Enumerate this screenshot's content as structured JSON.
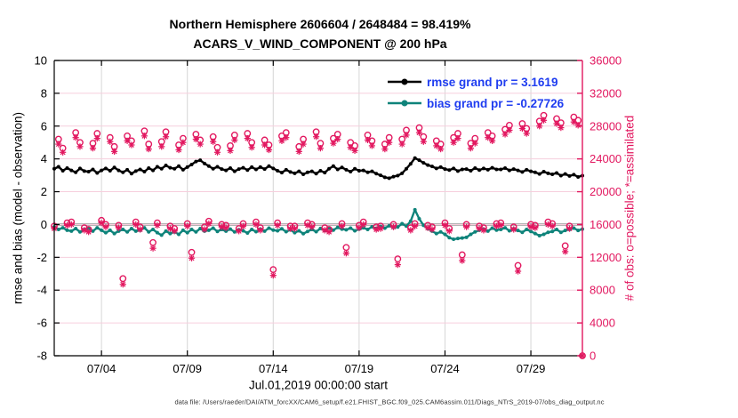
{
  "title": {
    "line1": "Northern Hemisphere 2606604 / 2648484 = 98.419%",
    "line2": "ACARS_V_WIND_COMPONENT @ 200 hPa"
  },
  "footer": {
    "data_file": "data file: /Users/raeder/DAI/ATM_forcXX/CAM6_setup/f.e21.FHIST_BGC.f09_025.CAM6assim.011/Diags_NTrS_2019-07/obs_diag_output.nc"
  },
  "colors": {
    "crimson": "#e2175f",
    "grid_pink": "#f6cfdd",
    "grid_gray": "#d6d6d6",
    "zero_gray": "#b3b3b3",
    "teal": "#0e837a",
    "black": "#000000",
    "legend_blue": "#1f3df0"
  },
  "chart_data": {
    "type": "line",
    "n_points": 124,
    "x_axis": {
      "label": "Jul.01,2019 00:00:00 start",
      "tick_labels": [
        "07/04",
        "07/09",
        "07/14",
        "07/19",
        "07/24",
        "07/29"
      ],
      "tick_days": [
        3,
        8,
        13,
        18,
        23,
        28
      ],
      "start_day": 0.25,
      "end_day": 31.0,
      "step_days": 0.25
    },
    "y_left": {
      "label": "rmse and bias (model - observation)",
      "min": -8,
      "max": 10,
      "ticks": [
        10,
        8,
        6,
        4,
        2,
        0,
        -2,
        -4,
        -6,
        -8
      ]
    },
    "y_right": {
      "label": "# of obs: o=possible; *=assimilated",
      "min": 0,
      "max": 36000,
      "ticks": [
        36000,
        32000,
        28000,
        24000,
        20000,
        16000,
        12000,
        8000,
        4000,
        0
      ]
    },
    "legend": [
      {
        "label": "rmse grand pr = 3.1619",
        "color": "#000000"
      },
      {
        "label": "bias grand pr = -0.27726",
        "color": "#0e837a"
      }
    ],
    "rmse_grand": 3.1619,
    "bias_grand": -0.27726,
    "series": [
      {
        "name": "rmse",
        "axis": "left",
        "type": "line",
        "color": "#000000",
        "values": [
          3.4,
          3.52,
          3.28,
          3.44,
          3.3,
          3.18,
          3.42,
          3.26,
          3.22,
          3.36,
          3.14,
          3.3,
          3.42,
          3.28,
          3.48,
          3.3,
          3.18,
          3.34,
          3.1,
          3.26,
          3.36,
          3.22,
          3.44,
          3.3,
          3.52,
          3.4,
          3.6,
          3.46,
          3.4,
          3.56,
          3.34,
          3.5,
          3.66,
          3.84,
          3.92,
          3.72,
          3.56,
          3.4,
          3.52,
          3.38,
          3.3,
          3.44,
          3.24,
          3.38,
          3.46,
          3.32,
          3.5,
          3.36,
          3.5,
          3.38,
          3.56,
          3.42,
          3.28,
          3.16,
          3.34,
          3.2,
          3.12,
          3.24,
          3.06,
          3.18,
          3.24,
          3.1,
          3.28,
          3.16,
          3.4,
          3.56,
          3.36,
          3.48,
          3.34,
          3.22,
          3.4,
          3.28,
          3.3,
          3.18,
          3.24,
          3.1,
          3.0,
          2.88,
          2.82,
          2.92,
          2.98,
          3.12,
          3.4,
          3.7,
          4.05,
          3.92,
          3.76,
          3.62,
          3.54,
          3.42,
          3.5,
          3.38,
          3.32,
          3.42,
          3.26,
          3.36,
          3.38,
          3.28,
          3.44,
          3.32,
          3.42,
          3.34,
          3.46,
          3.36,
          3.36,
          3.44,
          3.3,
          3.38,
          3.3,
          3.2,
          3.34,
          3.24,
          3.18,
          3.08,
          3.22,
          3.12,
          3.06,
          3.14,
          2.98,
          3.08,
          2.96,
          3.04,
          2.9,
          2.98
        ]
      },
      {
        "name": "bias",
        "axis": "left",
        "type": "line",
        "color": "#0e837a",
        "values": [
          -0.15,
          -0.3,
          -0.2,
          -0.35,
          -0.4,
          -0.25,
          -0.45,
          -0.3,
          -0.25,
          -0.4,
          -0.2,
          -0.35,
          -0.5,
          -0.35,
          -0.55,
          -0.4,
          -0.3,
          -0.45,
          -0.25,
          -0.4,
          -0.35,
          -0.2,
          -0.45,
          -0.3,
          -0.5,
          -0.65,
          -0.4,
          -0.55,
          -0.45,
          -0.6,
          -0.35,
          -0.5,
          -0.3,
          -0.45,
          -0.25,
          -0.4,
          -0.35,
          -0.22,
          -0.42,
          -0.3,
          -0.4,
          -0.28,
          -0.45,
          -0.32,
          -0.38,
          -0.52,
          -0.3,
          -0.44,
          -0.28,
          -0.4,
          -0.22,
          -0.34,
          -0.38,
          -0.26,
          -0.44,
          -0.32,
          -0.5,
          -0.38,
          -0.56,
          -0.42,
          -0.3,
          -0.44,
          -0.24,
          -0.36,
          -0.22,
          -0.34,
          -0.18,
          -0.28,
          -0.32,
          -0.22,
          -0.38,
          -0.28,
          -0.2,
          -0.3,
          -0.14,
          -0.24,
          -0.12,
          -0.22,
          -0.08,
          -0.18,
          -0.15,
          0.05,
          -0.1,
          0.2,
          0.9,
          0.35,
          -0.05,
          -0.25,
          -0.4,
          -0.55,
          -0.45,
          -0.6,
          -0.8,
          -0.9,
          -0.85,
          -0.82,
          -0.78,
          -0.6,
          -0.45,
          -0.35,
          -0.28,
          -0.4,
          -0.22,
          -0.34,
          -0.3,
          -0.2,
          -0.38,
          -0.26,
          -0.36,
          -0.48,
          -0.3,
          -0.42,
          -0.55,
          -0.68,
          -0.6,
          -0.48,
          -0.42,
          -0.3,
          -0.48,
          -0.36,
          -0.3,
          -0.22,
          -0.36,
          -0.28
        ]
      },
      {
        "name": "possible",
        "axis": "right",
        "type": "scatter",
        "marker": "o",
        "color": "#e2175f",
        "values": [
          15800,
          26400,
          25300,
          16200,
          16300,
          27200,
          26000,
          15600,
          15400,
          25900,
          27100,
          16500,
          16000,
          26600,
          25500,
          15900,
          9400,
          26800,
          26200,
          16300,
          15700,
          27400,
          25800,
          13800,
          16200,
          26100,
          27300,
          15800,
          15500,
          25700,
          26500,
          16100,
          12600,
          27000,
          26300,
          15700,
          16400,
          26700,
          25400,
          16000,
          15900,
          25600,
          26900,
          15500,
          16100,
          27100,
          26000,
          16300,
          15600,
          26300,
          25700,
          10500,
          16200,
          26800,
          27200,
          15800,
          15800,
          25500,
          26400,
          16200,
          16000,
          27300,
          25900,
          15600,
          15400,
          26500,
          27000,
          16100,
          13200,
          26000,
          25600,
          15900,
          16300,
          26900,
          26200,
          15700,
          15800,
          25800,
          26600,
          16000,
          11800,
          26400,
          27500,
          15600,
          16100,
          27800,
          26700,
          15900,
          15700,
          26200,
          25800,
          16200,
          15500,
          26600,
          27100,
          12300,
          16000,
          25900,
          26500,
          15800,
          15600,
          27200,
          26800,
          16100,
          16200,
          27600,
          28100,
          15700,
          11000,
          28300,
          27700,
          16000,
          15900,
          28600,
          29300,
          16300,
          16100,
          28900,
          28400,
          13400,
          15800,
          29100,
          28700,
          0
        ]
      },
      {
        "name": "assimilated",
        "axis": "right",
        "type": "scatter",
        "marker": "*",
        "color": "#e2175f",
        "values": [
          15500,
          25800,
          24800,
          15900,
          16000,
          26600,
          25500,
          15300,
          15100,
          25300,
          26500,
          16200,
          15700,
          26100,
          24900,
          15600,
          8700,
          26200,
          25700,
          16000,
          15400,
          26800,
          25200,
          13100,
          15900,
          25500,
          26700,
          15500,
          15200,
          25100,
          26000,
          15800,
          11900,
          26400,
          25800,
          15400,
          16100,
          26100,
          24800,
          15700,
          15600,
          25000,
          26300,
          15200,
          15800,
          26500,
          25400,
          16000,
          15300,
          25700,
          25100,
          9800,
          15900,
          26200,
          26600,
          15500,
          15500,
          24900,
          25800,
          15900,
          15700,
          26700,
          25300,
          15300,
          15100,
          25900,
          26400,
          15800,
          12500,
          25400,
          25000,
          15600,
          16000,
          26300,
          25600,
          15400,
          15500,
          25200,
          26000,
          15700,
          11100,
          25800,
          26900,
          15300,
          15800,
          27200,
          26100,
          15600,
          15400,
          25600,
          25200,
          15900,
          15200,
          26000,
          26500,
          11600,
          15700,
          25300,
          25900,
          15500,
          15300,
          26600,
          26200,
          15800,
          15900,
          27000,
          27500,
          15400,
          10300,
          27700,
          27100,
          15700,
          15600,
          28000,
          28700,
          16000,
          15800,
          28300,
          27800,
          12700,
          15500,
          28500,
          28100,
          0
        ]
      }
    ]
  }
}
